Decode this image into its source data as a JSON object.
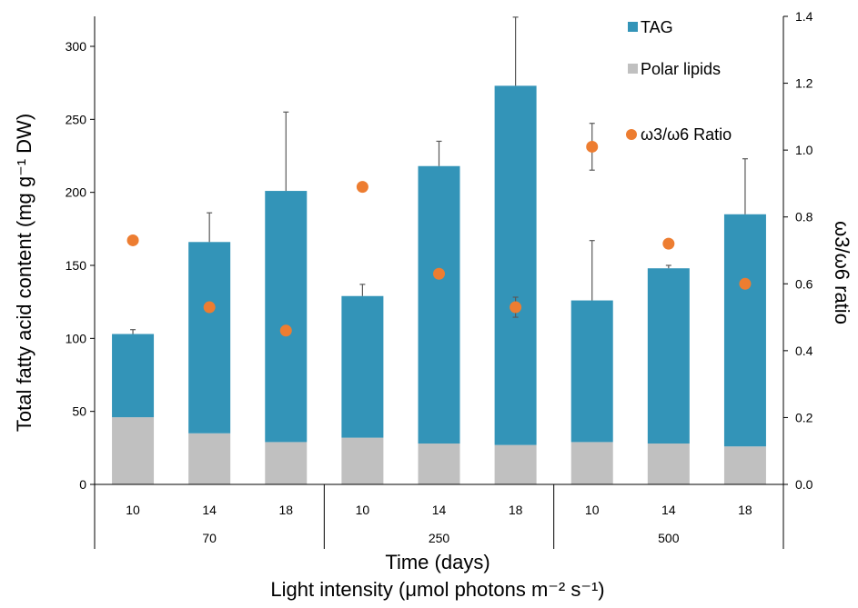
{
  "chart_data": {
    "type": "bar",
    "stacked": true,
    "categories": [
      "10",
      "14",
      "18",
      "10",
      "14",
      "18",
      "10",
      "14",
      "18"
    ],
    "groups": [
      {
        "label": "70",
        "count": 3
      },
      {
        "label": "250",
        "count": 3
      },
      {
        "label": "500",
        "count": 3
      }
    ],
    "series": [
      {
        "name": "Polar lipids",
        "type": "bar",
        "color": "#c0c0c0",
        "values": [
          46,
          35,
          29,
          32,
          28,
          27,
          29,
          28,
          26
        ]
      },
      {
        "name": "TAG",
        "type": "bar",
        "color": "#3394b8",
        "values": [
          57,
          131,
          172,
          97,
          190,
          246,
          97,
          120,
          159
        ],
        "totals": [
          103,
          166,
          201,
          129,
          218,
          273,
          126,
          148,
          185
        ],
        "error_plus": [
          3,
          20,
          54,
          8,
          17,
          47,
          41,
          2,
          38
        ]
      },
      {
        "name": "ω3/ω6 Ratio",
        "type": "scatter",
        "axis": "right",
        "color": "#ed7d31",
        "values": [
          0.73,
          0.53,
          0.46,
          0.89,
          0.63,
          0.53,
          1.01,
          0.72,
          0.6
        ],
        "error": [
          0.0,
          0.0,
          0.0,
          0.0,
          0.0,
          0.03,
          0.07,
          0.0,
          0.01
        ]
      }
    ],
    "ylabel": "Total fatty acid content (mg g⁻¹ DW)",
    "ylabel2": "ω3/ω6 ratio",
    "xlabel": "Time (days)",
    "xlabel2": "Light intensity (μmol photons m⁻² s⁻¹)",
    "ylim": [
      0,
      300
    ],
    "yticks": [
      0,
      50,
      100,
      150,
      200,
      250,
      300
    ],
    "y2lim": [
      0,
      1.4
    ],
    "y2ticks": [
      "0.0",
      "0.2",
      "0.4",
      "0.6",
      "0.8",
      "1.0",
      "1.2",
      "1.4"
    ],
    "legend": [
      "TAG",
      "Polar lipids",
      "ω3/ω6 Ratio"
    ],
    "legend_position": "top-right",
    "grid": false
  }
}
